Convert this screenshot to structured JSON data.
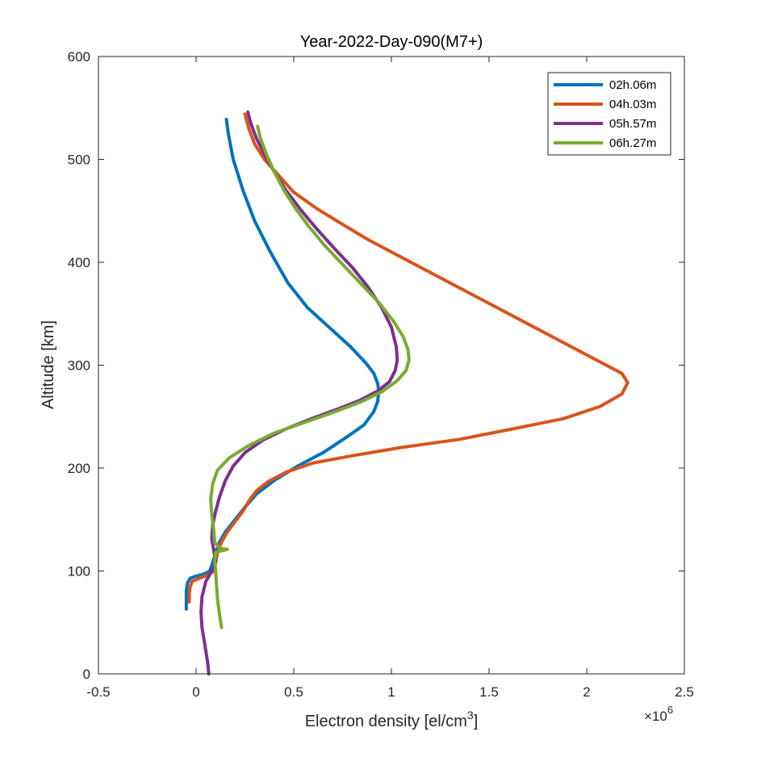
{
  "chart_data": {
    "type": "line",
    "title": "Year-2022-Day-090(M7+)",
    "xlabel": "Electron density [el/cm",
    "xlabel_sup": "3",
    "xlabel_end": "]",
    "ylabel": "Altitude [km]",
    "x_exponent_label": "×10",
    "x_exponent_sup": "6",
    "xlim": [
      -0.5,
      2.5
    ],
    "ylim": [
      0,
      600
    ],
    "xticks": [
      -0.5,
      0,
      0.5,
      1,
      1.5,
      2,
      2.5
    ],
    "xtick_labels": [
      "-0.5",
      "0",
      "0.5",
      "1",
      "1.5",
      "2",
      "2.5"
    ],
    "yticks": [
      0,
      100,
      200,
      300,
      400,
      500,
      600
    ],
    "ytick_labels": [
      "0",
      "100",
      "200",
      "300",
      "400",
      "500",
      "600"
    ],
    "grid": false,
    "legend_position": "top-right",
    "series": [
      {
        "name": "02h.06m",
        "color": "#0072BD",
        "points": [
          [
            0.155,
            539
          ],
          [
            0.165,
            525
          ],
          [
            0.19,
            500
          ],
          [
            0.24,
            470
          ],
          [
            0.3,
            440
          ],
          [
            0.38,
            410
          ],
          [
            0.47,
            380
          ],
          [
            0.57,
            356
          ],
          [
            0.68,
            337
          ],
          [
            0.79,
            318
          ],
          [
            0.87,
            302
          ],
          [
            0.91,
            292
          ],
          [
            0.93,
            282
          ],
          [
            0.935,
            275
          ],
          [
            0.93,
            265
          ],
          [
            0.91,
            255
          ],
          [
            0.86,
            242
          ],
          [
            0.77,
            230
          ],
          [
            0.65,
            215
          ],
          [
            0.52,
            202
          ],
          [
            0.4,
            188
          ],
          [
            0.31,
            175
          ],
          [
            0.25,
            162
          ],
          [
            0.2,
            150
          ],
          [
            0.15,
            138
          ],
          [
            0.12,
            128
          ],
          [
            0.1,
            118
          ],
          [
            0.085,
            108
          ],
          [
            0.07,
            100
          ],
          [
            0.04,
            97
          ],
          [
            0.0,
            95
          ],
          [
            -0.03,
            93
          ],
          [
            -0.045,
            88
          ],
          [
            -0.05,
            80
          ],
          [
            -0.05,
            72
          ],
          [
            -0.05,
            63
          ]
        ]
      },
      {
        "name": "04h.03m",
        "color": "#D95319",
        "points": [
          [
            0.25,
            544
          ],
          [
            0.27,
            530
          ],
          [
            0.3,
            515
          ],
          [
            0.35,
            500
          ],
          [
            0.42,
            485
          ],
          [
            0.5,
            468
          ],
          [
            0.62,
            452
          ],
          [
            0.74,
            438
          ],
          [
            0.88,
            422
          ],
          [
            1.05,
            405
          ],
          [
            1.25,
            385
          ],
          [
            1.45,
            365
          ],
          [
            1.65,
            345
          ],
          [
            1.85,
            325
          ],
          [
            2.05,
            305
          ],
          [
            2.18,
            292
          ],
          [
            2.21,
            283
          ],
          [
            2.18,
            272
          ],
          [
            2.07,
            260
          ],
          [
            1.88,
            248
          ],
          [
            1.62,
            238
          ],
          [
            1.35,
            228
          ],
          [
            1.05,
            220
          ],
          [
            0.8,
            212
          ],
          [
            0.6,
            205
          ],
          [
            0.46,
            196
          ],
          [
            0.37,
            187
          ],
          [
            0.31,
            178
          ],
          [
            0.27,
            168
          ],
          [
            0.24,
            158
          ],
          [
            0.2,
            148
          ],
          [
            0.16,
            138
          ],
          [
            0.13,
            128
          ],
          [
            0.11,
            118
          ],
          [
            0.1,
            108
          ],
          [
            0.09,
            100
          ],
          [
            0.06,
            96
          ],
          [
            0.02,
            93
          ],
          [
            -0.02,
            90
          ],
          [
            -0.03,
            85
          ],
          [
            -0.035,
            78
          ],
          [
            -0.035,
            70
          ]
        ]
      },
      {
        "name": "05h.57m",
        "color": "#7E2F8E",
        "points": [
          [
            0.265,
            546
          ],
          [
            0.28,
            535
          ],
          [
            0.31,
            520
          ],
          [
            0.35,
            505
          ],
          [
            0.4,
            488
          ],
          [
            0.46,
            470
          ],
          [
            0.54,
            450
          ],
          [
            0.62,
            432
          ],
          [
            0.71,
            413
          ],
          [
            0.8,
            395
          ],
          [
            0.88,
            376
          ],
          [
            0.95,
            356
          ],
          [
            1.0,
            337
          ],
          [
            1.025,
            318
          ],
          [
            1.03,
            305
          ],
          [
            1.02,
            295
          ],
          [
            0.99,
            284
          ],
          [
            0.93,
            275
          ],
          [
            0.84,
            266
          ],
          [
            0.72,
            257
          ],
          [
            0.59,
            248
          ],
          [
            0.46,
            238
          ],
          [
            0.34,
            227
          ],
          [
            0.25,
            215
          ],
          [
            0.19,
            202
          ],
          [
            0.15,
            188
          ],
          [
            0.12,
            172
          ],
          [
            0.1,
            158
          ],
          [
            0.085,
            145
          ],
          [
            0.08,
            132
          ],
          [
            0.09,
            120
          ],
          [
            0.1,
            110
          ],
          [
            0.08,
            100
          ],
          [
            0.05,
            90
          ],
          [
            0.03,
            75
          ],
          [
            0.025,
            60
          ],
          [
            0.03,
            45
          ],
          [
            0.045,
            28
          ],
          [
            0.06,
            10
          ],
          [
            0.065,
            0
          ]
        ]
      },
      {
        "name": "06h.27m",
        "color": "#77AC30",
        "points": [
          [
            0.315,
            532
          ],
          [
            0.33,
            520
          ],
          [
            0.36,
            505
          ],
          [
            0.4,
            488
          ],
          [
            0.45,
            470
          ],
          [
            0.51,
            452
          ],
          [
            0.58,
            434
          ],
          [
            0.66,
            416
          ],
          [
            0.75,
            398
          ],
          [
            0.85,
            378
          ],
          [
            0.94,
            360
          ],
          [
            1.01,
            343
          ],
          [
            1.06,
            328
          ],
          [
            1.085,
            315
          ],
          [
            1.09,
            305
          ],
          [
            1.075,
            295
          ],
          [
            1.03,
            285
          ],
          [
            0.95,
            274
          ],
          [
            0.84,
            264
          ],
          [
            0.7,
            254
          ],
          [
            0.55,
            244
          ],
          [
            0.4,
            234
          ],
          [
            0.27,
            222
          ],
          [
            0.17,
            210
          ],
          [
            0.11,
            198
          ],
          [
            0.085,
            185
          ],
          [
            0.075,
            170
          ],
          [
            0.08,
            155
          ],
          [
            0.09,
            140
          ],
          [
            0.095,
            128
          ],
          [
            0.12,
            122
          ],
          [
            0.16,
            121
          ],
          [
            0.1,
            118
          ],
          [
            0.095,
            110
          ],
          [
            0.1,
            100
          ],
          [
            0.105,
            85
          ],
          [
            0.11,
            72
          ],
          [
            0.12,
            58
          ],
          [
            0.13,
            45
          ]
        ]
      }
    ]
  }
}
